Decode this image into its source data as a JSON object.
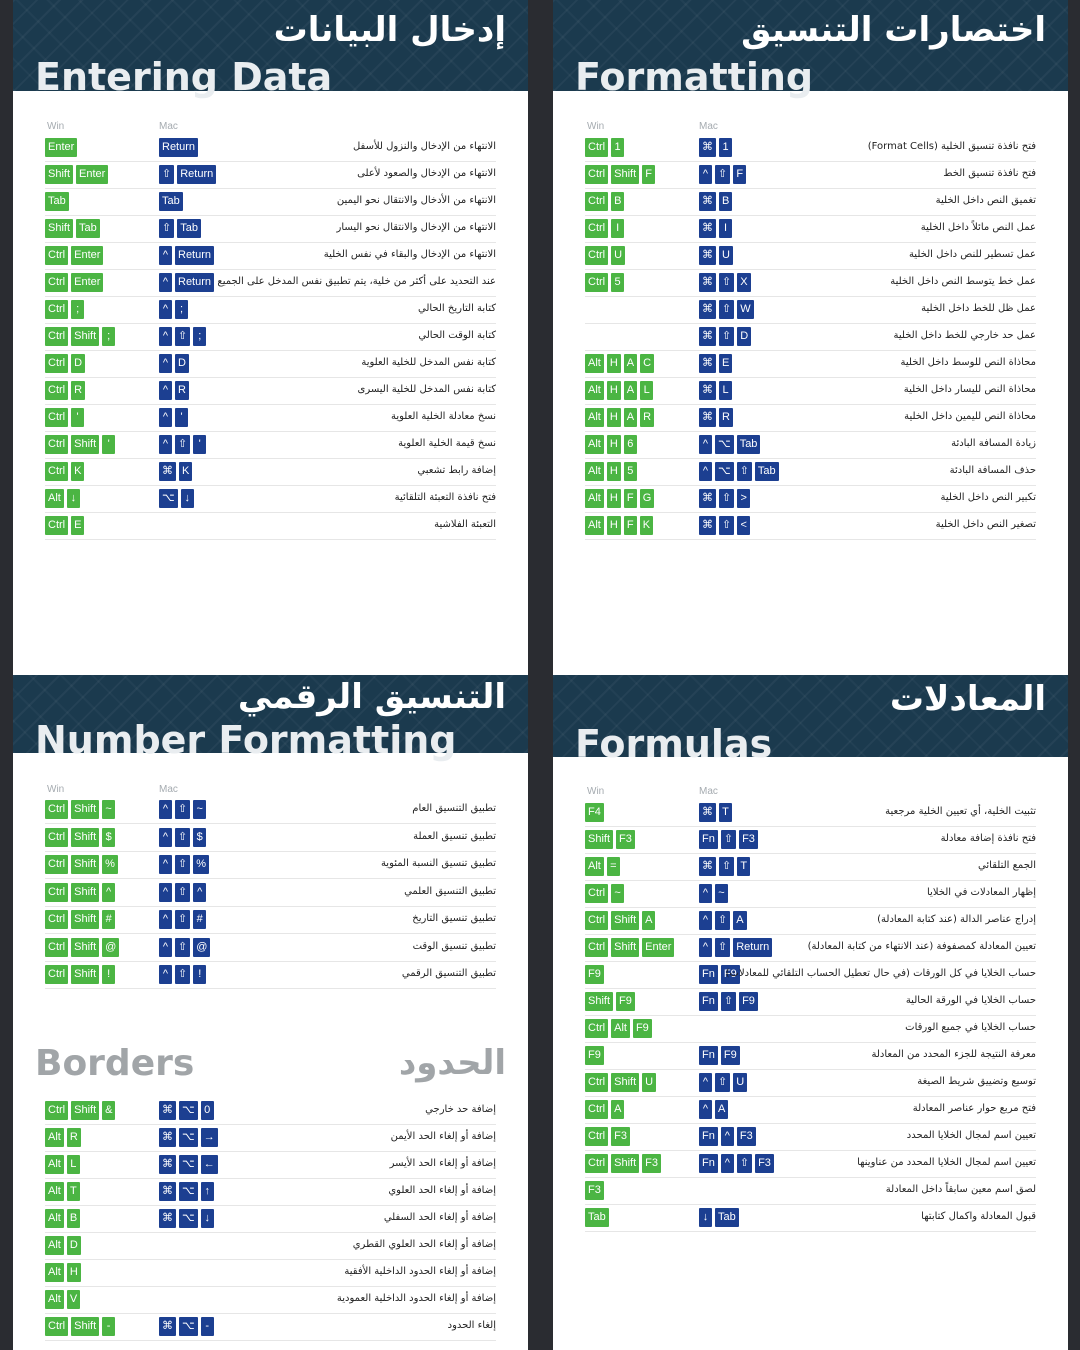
{
  "labels": {
    "win": "Win",
    "mac": "Mac"
  },
  "colors": {
    "win_key": "#4bb543",
    "mac_key": "#1c3f91",
    "header_bg": "#1b3a4e"
  },
  "panels": [
    {
      "id": "entering",
      "title_ar": "إدخال البيانات",
      "title_en": "Entering Data",
      "rows": [
        {
          "win": [
            "Enter"
          ],
          "mac": [
            "Return"
          ],
          "desc": "الانتهاء من الإدخال والنزول للأسفل"
        },
        {
          "win": [
            "Shift",
            "Enter"
          ],
          "mac": [
            "⇧",
            "Return"
          ],
          "desc": "الانتهاء من الإدخال والصعود لأعلى"
        },
        {
          "win": [
            "Tab"
          ],
          "mac": [
            "Tab"
          ],
          "desc": "الانتهاء من الأدخال والانتقال نحو اليمين"
        },
        {
          "win": [
            "Shift",
            "Tab"
          ],
          "mac": [
            "⇧",
            "Tab"
          ],
          "desc": "الانتهاء من الإدخال والانتقال نحو اليسار"
        },
        {
          "win": [
            "Ctrl",
            "Enter"
          ],
          "mac": [
            "^",
            "Return"
          ],
          "desc": "الانتهاء من الإدخال والبقاء في نفس الخلية"
        },
        {
          "win": [
            "Ctrl",
            "Enter"
          ],
          "mac": [
            "^",
            "Return"
          ],
          "desc": "عند التحديد على أكثر من خلية، يتم تطبيق نفس المدخل على الجميع"
        },
        {
          "win": [
            "Ctrl",
            ";"
          ],
          "mac": [
            "^",
            ";"
          ],
          "desc": "كتابة التاريخ الحالي"
        },
        {
          "win": [
            "Ctrl",
            "Shift",
            ";"
          ],
          "mac": [
            "^",
            "⇧",
            ";"
          ],
          "desc": "كتابة الوقت الحالي"
        },
        {
          "win": [
            "Ctrl",
            "D"
          ],
          "mac": [
            "^",
            "D"
          ],
          "desc": "كتابة نفس المدخل للخلية العلوية"
        },
        {
          "win": [
            "Ctrl",
            "R"
          ],
          "mac": [
            "^",
            "R"
          ],
          "desc": "كتابة نفس المدخل للخلية اليسرى"
        },
        {
          "win": [
            "Ctrl",
            "'"
          ],
          "mac": [
            "^",
            "'"
          ],
          "desc": "نسخ معادلة الخلية العلوية"
        },
        {
          "win": [
            "Ctrl",
            "Shift",
            "'"
          ],
          "mac": [
            "^",
            "⇧",
            "'"
          ],
          "desc": "نسخ قيمة الخلية العلوية"
        },
        {
          "win": [
            "Ctrl",
            "K"
          ],
          "mac": [
            "⌘",
            "K"
          ],
          "desc": "إضافة رابط تشعبي"
        },
        {
          "win": [
            "Alt",
            "↓"
          ],
          "mac": [
            "⌥",
            "↓"
          ],
          "desc": "فتح نافذة التعبئة التلقائية"
        },
        {
          "win": [
            "Ctrl",
            "E"
          ],
          "mac": [],
          "desc": "التعبئة الفلاشية"
        }
      ]
    },
    {
      "id": "formatting",
      "title_ar": "اختصارات التنسيق",
      "title_en": "Formatting",
      "rows": [
        {
          "win": [
            "Ctrl",
            "1"
          ],
          "mac": [
            "⌘",
            "1"
          ],
          "desc": "فتح نافذة تنسيق الخلية (Format Cells)"
        },
        {
          "win": [
            "Ctrl",
            "Shift",
            "F"
          ],
          "mac": [
            "^",
            "⇧",
            "F"
          ],
          "desc": "فتح نافذة تنسيق الخط"
        },
        {
          "win": [
            "Ctrl",
            "B"
          ],
          "mac": [
            "⌘",
            "B"
          ],
          "desc": "تغميق النص داخل الخلية"
        },
        {
          "win": [
            "Ctrl",
            "I"
          ],
          "mac": [
            "⌘",
            "I"
          ],
          "desc": "عمل النص مائلاً داخل الخلية"
        },
        {
          "win": [
            "Ctrl",
            "U"
          ],
          "mac": [
            "⌘",
            "U"
          ],
          "desc": "عمل تسطير للنص داخل الخلية"
        },
        {
          "win": [
            "Ctrl",
            "5"
          ],
          "mac": [
            "⌘",
            "⇧",
            "X"
          ],
          "desc": "عمل خط يتوسط النص داخل الخلية"
        },
        {
          "win": [],
          "mac": [
            "⌘",
            "⇧",
            "W"
          ],
          "desc": "عمل ظل للخط داخل الخلية"
        },
        {
          "win": [],
          "mac": [
            "⌘",
            "⇧",
            "D"
          ],
          "desc": "عمل حد خارجي للخط داخل الخلية"
        },
        {
          "win": [
            "Alt",
            "H",
            "A",
            "C"
          ],
          "mac": [
            "⌘",
            "E"
          ],
          "desc": "محاذاة النص للوسط داخل الخلية"
        },
        {
          "win": [
            "Alt",
            "H",
            "A",
            "L"
          ],
          "mac": [
            "⌘",
            "L"
          ],
          "desc": "محاذاة النص لليسار داخل الخلية"
        },
        {
          "win": [
            "Alt",
            "H",
            "A",
            "R"
          ],
          "mac": [
            "⌘",
            "R"
          ],
          "desc": "محاذاة النص لليمين داخل الخلية"
        },
        {
          "win": [
            "Alt",
            "H",
            "6"
          ],
          "mac": [
            "^",
            "⌥",
            "Tab"
          ],
          "desc": "زيادة المسافة البادئة"
        },
        {
          "win": [
            "Alt",
            "H",
            "5"
          ],
          "mac": [
            "^",
            "⌥",
            "⇧",
            "Tab"
          ],
          "desc": "حذف المسافة البادئة"
        },
        {
          "win": [
            "Alt",
            "H",
            "F",
            "G"
          ],
          "mac": [
            "⌘",
            "⇧",
            ">"
          ],
          "desc": "تكبير النص داخل الخلية"
        },
        {
          "win": [
            "Alt",
            "H",
            "F",
            "K"
          ],
          "mac": [
            "⌘",
            "⇧",
            "<"
          ],
          "desc": "تصغير النص داخل الخلية"
        }
      ]
    },
    {
      "id": "number",
      "title_ar": "التنسيق الرقمي",
      "title_en": "Number Formatting",
      "rows": [
        {
          "win": [
            "Ctrl",
            "Shift",
            "~"
          ],
          "mac": [
            "^",
            "⇧",
            "~"
          ],
          "desc": "تطبيق التنسيق العام"
        },
        {
          "win": [
            "Ctrl",
            "Shift",
            "$"
          ],
          "mac": [
            "^",
            "⇧",
            "$"
          ],
          "desc": "تطبيق تنسيق العملة"
        },
        {
          "win": [
            "Ctrl",
            "Shift",
            "%"
          ],
          "mac": [
            "^",
            "⇧",
            "%"
          ],
          "desc": "تطبيق تنسيق النسبة المئوية"
        },
        {
          "win": [
            "Ctrl",
            "Shift",
            "^"
          ],
          "mac": [
            "^",
            "⇧",
            "^"
          ],
          "desc": "تطبيق التنسيق العلمي"
        },
        {
          "win": [
            "Ctrl",
            "Shift",
            "#"
          ],
          "mac": [
            "^",
            "⇧",
            "#"
          ],
          "desc": "تطبيق تنسيق التاريخ"
        },
        {
          "win": [
            "Ctrl",
            "Shift",
            "@"
          ],
          "mac": [
            "^",
            "⇧",
            "@"
          ],
          "desc": "تطبيق تنسيق الوقت"
        },
        {
          "win": [
            "Ctrl",
            "Shift",
            "!"
          ],
          "mac": [
            "^",
            "⇧",
            "!"
          ],
          "desc": "تطبيق التنسيق الرقمي"
        }
      ],
      "sub_title_en": "Borders",
      "sub_title_ar": "الحدود",
      "sub_rows": [
        {
          "win": [
            "Ctrl",
            "Shift",
            "&"
          ],
          "mac": [
            "⌘",
            "⌥",
            "0"
          ],
          "desc": "إضافة حد خارجي"
        },
        {
          "win": [
            "Alt",
            "R"
          ],
          "mac": [
            "⌘",
            "⌥",
            "→"
          ],
          "desc": "إضافة أو إلغاء الحد الأيمن"
        },
        {
          "win": [
            "Alt",
            "L"
          ],
          "mac": [
            "⌘",
            "⌥",
            "←"
          ],
          "desc": "إضافة أو إلغاء الحد الأيسر"
        },
        {
          "win": [
            "Alt",
            "T"
          ],
          "mac": [
            "⌘",
            "⌥",
            "↑"
          ],
          "desc": "إضافة أو إلغاء الحد العلوي"
        },
        {
          "win": [
            "Alt",
            "B"
          ],
          "mac": [
            "⌘",
            "⌥",
            "↓"
          ],
          "desc": "إضافة أو إلغاء الحد السفلي"
        },
        {
          "win": [
            "Alt",
            "D"
          ],
          "mac": [],
          "desc": "إضافة أو إلغاء الحد العلوي القطري"
        },
        {
          "win": [
            "Alt",
            "H"
          ],
          "mac": [],
          "desc": "إضافة أو إلغاء الحدود الداخلية الأفقية"
        },
        {
          "win": [
            "Alt",
            "V"
          ],
          "mac": [],
          "desc": "إضافة أو إلغاء الحدود الداخلية العمودية"
        },
        {
          "win": [
            "Ctrl",
            "Shift",
            "-"
          ],
          "mac": [
            "⌘",
            "⌥",
            "-"
          ],
          "desc": "إلغاء الحدود"
        }
      ]
    },
    {
      "id": "formulas",
      "title_ar": "المعادلات",
      "title_en": "Formulas",
      "rows": [
        {
          "win": [
            "F4"
          ],
          "mac": [
            "⌘",
            "T"
          ],
          "desc": "تثبيت الخلية، أي تعيين الخلية مرجعية"
        },
        {
          "win": [
            "Shift",
            "F3"
          ],
          "mac": [
            "Fn",
            "⇧",
            "F3"
          ],
          "desc": "فتح نافذة إضافة معادلة"
        },
        {
          "win": [
            "Alt",
            "="
          ],
          "mac": [
            "⌘",
            "⇧",
            "T"
          ],
          "desc": "الجمع التلقائي"
        },
        {
          "win": [
            "Ctrl",
            "~"
          ],
          "mac": [
            "^",
            "~"
          ],
          "desc": "إظهار المعادلات في الخلايا"
        },
        {
          "win": [
            "Ctrl",
            "Shift",
            "A"
          ],
          "mac": [
            "^",
            "⇧",
            "A"
          ],
          "desc": "إدراج عناصر الدالة (عند كتابة المعادلة)"
        },
        {
          "win": [
            "Ctrl",
            "Shift",
            "Enter"
          ],
          "mac": [
            "^",
            "⇧",
            "Return"
          ],
          "desc": "تعيين المعادلة كمصفوفة (عند الانتهاء من كتابة المعادلة)"
        },
        {
          "win": [
            "F9"
          ],
          "mac": [
            "Fn",
            "F9"
          ],
          "desc": "حساب الخلايا في كل الورقات (في حال تعطيل الحساب التلقائي للمعادلات)"
        },
        {
          "win": [
            "Shift",
            "F9"
          ],
          "mac": [
            "Fn",
            "⇧",
            "F9"
          ],
          "desc": "حساب الخلايا في الورقة الحالية"
        },
        {
          "win": [
            "Ctrl",
            "Alt",
            "F9"
          ],
          "mac": [],
          "desc": "حساب الخلايا في جميع الورقات"
        },
        {
          "win": [
            "F9"
          ],
          "mac": [
            "Fn",
            "F9"
          ],
          "desc": "معرفة النتيجة للجزء المحدد من المعادلة"
        },
        {
          "win": [
            "Ctrl",
            "Shift",
            "U"
          ],
          "mac": [
            "^",
            "⇧",
            "U"
          ],
          "desc": "توسيع وتضييق شريط الصيغة"
        },
        {
          "win": [
            "Ctrl",
            "A"
          ],
          "mac": [
            "^",
            "A"
          ],
          "desc": "فتح مربع حوار عناصر المعادلة"
        },
        {
          "win": [
            "Ctrl",
            "F3"
          ],
          "mac": [
            "Fn",
            "^",
            "F3"
          ],
          "desc": "تعيين اسم لمجال الخلايا المحدد"
        },
        {
          "win": [
            "Ctrl",
            "Shift",
            "F3"
          ],
          "mac": [
            "Fn",
            "^",
            "⇧",
            "F3"
          ],
          "desc": "تعيين اسم لمجال الخلايا المحدد من عناوينها"
        },
        {
          "win": [
            "F3"
          ],
          "mac": [],
          "desc": "لصق اسم معين سابقاً داخل المعادلة"
        },
        {
          "win": [
            "Tab"
          ],
          "mac": [
            "↓",
            "Tab"
          ],
          "desc": "قبول المعادلة واكمال كتابتها"
        }
      ]
    }
  ]
}
